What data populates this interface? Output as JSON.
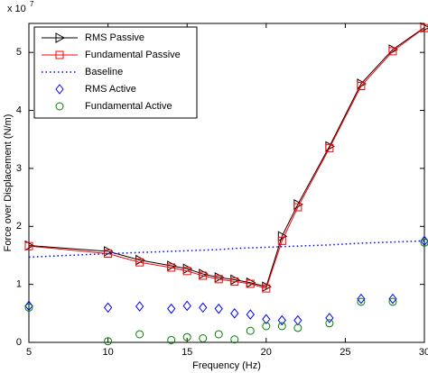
{
  "chart_data": {
    "type": "line",
    "x_label": "Frequency (Hz)",
    "y_label": "Force over Displacement (N/m)",
    "y_multiplier": "x 10",
    "y_multiplier_exponent": "7",
    "x": [
      5,
      10,
      12,
      14,
      15,
      16,
      17,
      18,
      19,
      20,
      21,
      22,
      24,
      26,
      28,
      30
    ],
    "series": [
      {
        "name": "RMS Passive",
        "color": "#000000",
        "marker": "triangle-right",
        "line": "solid",
        "values": [
          1.67,
          1.57,
          1.42,
          1.32,
          1.27,
          1.18,
          1.12,
          1.08,
          1.03,
          0.96,
          1.83,
          2.38,
          3.38,
          4.46,
          5.05,
          5.43
        ]
      },
      {
        "name": "Fundamental Passive",
        "color": "#ff0000",
        "marker": "square",
        "line": "solid",
        "values": [
          1.66,
          1.53,
          1.38,
          1.29,
          1.23,
          1.15,
          1.09,
          1.05,
          1.01,
          0.93,
          1.75,
          2.33,
          3.35,
          4.42,
          5.02,
          5.42
        ]
      },
      {
        "name": "Baseline",
        "color": "#0000ff",
        "marker": "none",
        "line": "dotted",
        "values": [
          1.47,
          1.53,
          1.55,
          1.57,
          1.58,
          1.59,
          1.6,
          1.62,
          1.63,
          1.64,
          1.65,
          1.66,
          1.68,
          1.71,
          1.73,
          1.75
        ]
      },
      {
        "name": "RMS Active",
        "color": "#0000ff",
        "marker": "diamond",
        "line": "none",
        "values": [
          0.63,
          0.6,
          0.62,
          0.58,
          0.63,
          0.6,
          0.58,
          0.5,
          0.48,
          0.4,
          0.38,
          0.38,
          0.42,
          0.75,
          0.75,
          1.75
        ]
      },
      {
        "name": "Fundamental Active",
        "color": "#008000",
        "marker": "circle",
        "line": "none",
        "values": [
          0.6,
          0.02,
          0.14,
          0.04,
          0.09,
          0.07,
          0.14,
          0.05,
          0.2,
          0.28,
          0.28,
          0.25,
          0.33,
          0.7,
          0.7,
          1.72
        ]
      }
    ],
    "xlim": [
      5,
      30
    ],
    "xticks": [
      5,
      10,
      15,
      20,
      25,
      30
    ],
    "ylim": [
      0,
      5.5
    ],
    "yticks": [
      0,
      1,
      2,
      3,
      4,
      5
    ],
    "legend": "upper left",
    "grid": false
  }
}
